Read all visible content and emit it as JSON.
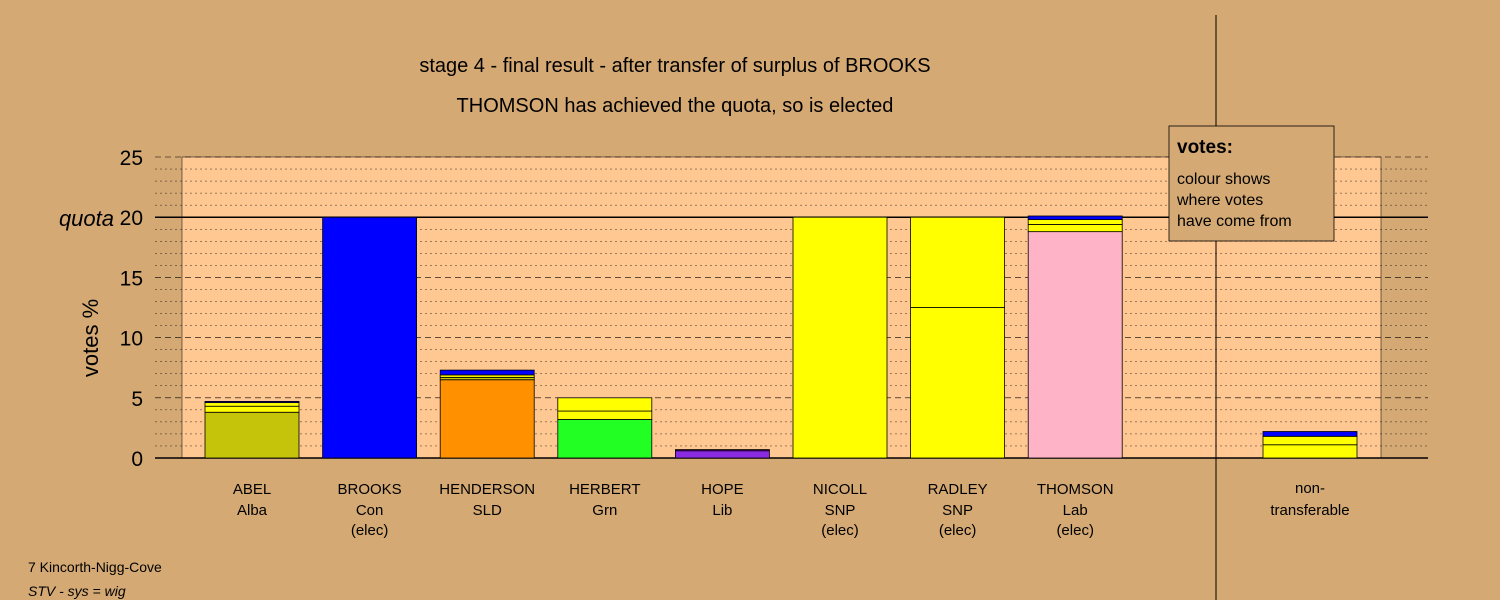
{
  "chart_data": {
    "type": "bar",
    "stacked": true,
    "title": "stage 4 - final result - after transfer of surplus of BROOKS",
    "subtitle": "THOMSON has achieved the quota, so is elected",
    "ylabel": "votes %",
    "ylim": [
      0,
      25
    ],
    "yticks": [
      0,
      5,
      10,
      15,
      20,
      25
    ],
    "quota": {
      "label": "quota",
      "value": 20
    },
    "grid": true,
    "candidates": [
      {
        "name": "ABEL",
        "party": "Alba",
        "status": "",
        "segments": [
          {
            "value": 3.8,
            "color": "#c5c40a"
          },
          {
            "value": 0.5,
            "color": "#ffff00"
          },
          {
            "value": 0.3,
            "color": "#ffff00"
          },
          {
            "value": 0.1,
            "color": "#0000ff"
          }
        ]
      },
      {
        "name": "BROOKS",
        "party": "Con",
        "status": "(elec)",
        "segments": [
          {
            "value": 20.0,
            "color": "#0000ff"
          }
        ]
      },
      {
        "name": "HENDERSON",
        "party": "SLD",
        "status": "",
        "segments": [
          {
            "value": 6.5,
            "color": "#ff9100"
          },
          {
            "value": 0.2,
            "color": "#c5c40a"
          },
          {
            "value": 0.2,
            "color": "#ffff00"
          },
          {
            "value": 0.4,
            "color": "#0000ff"
          }
        ]
      },
      {
        "name": "HERBERT",
        "party": "Grn",
        "status": "",
        "segments": [
          {
            "value": 3.2,
            "color": "#22ff22"
          },
          {
            "value": 0.7,
            "color": "#ffff00"
          },
          {
            "value": 1.1,
            "color": "#ffff00"
          }
        ]
      },
      {
        "name": "HOPE",
        "party": "Lib",
        "status": "",
        "segments": [
          {
            "value": 0.6,
            "color": "#8a2be2"
          },
          {
            "value": 0.1,
            "color": "#7b00b4"
          }
        ]
      },
      {
        "name": "NICOLL",
        "party": "SNP",
        "status": "(elec)",
        "segments": [
          {
            "value": 20.0,
            "color": "#ffff00"
          }
        ]
      },
      {
        "name": "RADLEY",
        "party": "SNP",
        "status": "(elec)",
        "segments": [
          {
            "value": 12.5,
            "color": "#ffff00"
          },
          {
            "value": 7.5,
            "color": "#ffff00"
          }
        ]
      },
      {
        "name": "THOMSON",
        "party": "Lab",
        "status": "(elec)",
        "segments": [
          {
            "value": 18.8,
            "color": "#ffb3c6"
          },
          {
            "value": 0.6,
            "color": "#ffff00"
          },
          {
            "value": 0.4,
            "color": "#ffff00"
          },
          {
            "value": 0.3,
            "color": "#0000ff"
          }
        ]
      }
    ],
    "nontransferable": {
      "line1": "non-",
      "line2": "transferable",
      "segments": [
        {
          "value": 1.1,
          "color": "#ffff00"
        },
        {
          "value": 0.7,
          "color": "#ffff00"
        },
        {
          "value": 0.4,
          "color": "#0000ff"
        }
      ]
    },
    "legend": {
      "title": "votes:",
      "lines": [
        "colour shows",
        "where votes",
        "have come from"
      ]
    }
  },
  "footer": {
    "ward": "7 Kincorth-Nigg-Cove",
    "system": "STV - sys = wig"
  }
}
